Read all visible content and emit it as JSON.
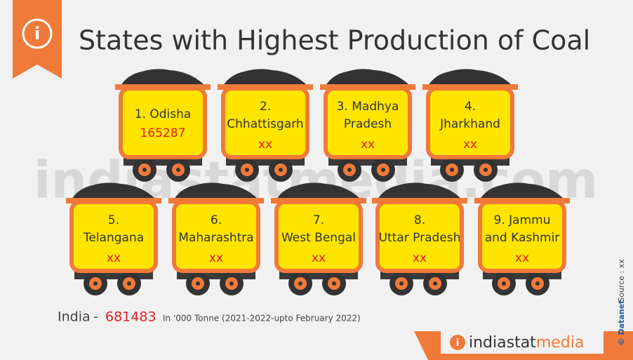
{
  "header": {
    "title": "States with Highest Production of Coal"
  },
  "watermark": "indiastatmedia.com",
  "carts": [
    {
      "lines": [
        "1. Odisha"
      ],
      "value": 165287
    },
    {
      "lines": [
        "2.",
        "Chhattisgarh"
      ],
      "value": "xx"
    },
    {
      "lines": [
        "3. Madhya",
        "Pradesh"
      ],
      "value": "xx"
    },
    {
      "lines": [
        "4.",
        "Jharkhand"
      ],
      "value": "xx"
    },
    {
      "lines": [
        "5.",
        "Telangana"
      ],
      "value": "xx"
    },
    {
      "lines": [
        "6.",
        "Maharashtra"
      ],
      "value": "xx"
    },
    {
      "lines": [
        "7.",
        "West Bengal"
      ],
      "value": "xx"
    },
    {
      "lines": [
        "8.",
        "Uttar Pradesh"
      ],
      "value": "xx"
    },
    {
      "lines": [
        "9. Jammu",
        "and Kashmir"
      ],
      "value": "xx"
    }
  ],
  "footer": {
    "country": "India",
    "dash": "-",
    "total": 681483,
    "unit_note": "In '000 Tonne (2021-2022-upto February 2022)"
  },
  "side": {
    "source": "Source : xx",
    "copyright": "© Datanet"
  },
  "logo": {
    "part1": "indiastat",
    "part2": "media"
  }
}
